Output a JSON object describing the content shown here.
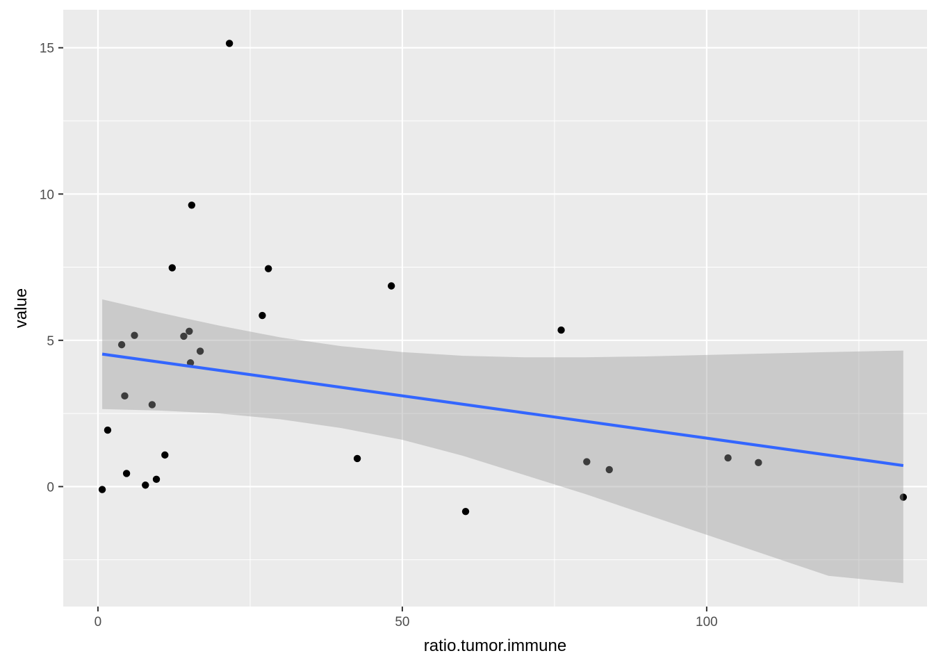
{
  "chart_data": {
    "type": "scatter",
    "title": "",
    "xlabel": "ratio.tumor.immune",
    "ylabel": "value",
    "xlim": [
      -5.7,
      136.2
    ],
    "ylim": [
      -4.1,
      16.3
    ],
    "x_ticks": [
      0,
      50,
      100
    ],
    "x_tick_labels": [
      "0",
      "50",
      "100"
    ],
    "y_ticks": [
      0,
      5,
      10,
      15
    ],
    "y_tick_labels": [
      "0",
      "5",
      "10",
      "15"
    ],
    "grid": true,
    "legend": "none",
    "colors": {
      "panel_background": "#ebebeb",
      "grid": "#ffffff",
      "points": "#000000",
      "fit_line": "#3366ff",
      "confidence_band": "#999999"
    },
    "points": [
      {
        "x": 0.7,
        "y": -0.1
      },
      {
        "x": 1.6,
        "y": 1.93
      },
      {
        "x": 3.9,
        "y": 4.85
      },
      {
        "x": 4.4,
        "y": 3.1
      },
      {
        "x": 4.7,
        "y": 0.45
      },
      {
        "x": 6.0,
        "y": 5.17
      },
      {
        "x": 7.8,
        "y": 0.05
      },
      {
        "x": 8.9,
        "y": 2.8
      },
      {
        "x": 9.6,
        "y": 0.25
      },
      {
        "x": 11.0,
        "y": 1.08
      },
      {
        "x": 12.2,
        "y": 7.48
      },
      {
        "x": 14.1,
        "y": 5.14
      },
      {
        "x": 15.0,
        "y": 5.31
      },
      {
        "x": 15.2,
        "y": 4.23
      },
      {
        "x": 15.4,
        "y": 9.62
      },
      {
        "x": 16.8,
        "y": 4.63
      },
      {
        "x": 21.6,
        "y": 15.15
      },
      {
        "x": 27.0,
        "y": 5.85
      },
      {
        "x": 28.0,
        "y": 7.45
      },
      {
        "x": 42.6,
        "y": 0.96
      },
      {
        "x": 48.2,
        "y": 6.86
      },
      {
        "x": 60.4,
        "y": -0.85
      },
      {
        "x": 76.1,
        "y": 5.35
      },
      {
        "x": 80.3,
        "y": 0.85
      },
      {
        "x": 84.0,
        "y": 0.58
      },
      {
        "x": 103.5,
        "y": 0.98
      },
      {
        "x": 108.5,
        "y": 0.82
      },
      {
        "x": 132.3,
        "y": -0.36
      }
    ],
    "fit_line": {
      "method": "lm",
      "x": [
        0.7,
        132.3
      ],
      "y": [
        4.53,
        0.72
      ]
    },
    "confidence_band": [
      {
        "x": 0.7,
        "lower": 2.65,
        "upper": 6.4
      },
      {
        "x": 10,
        "lower": 2.6,
        "upper": 5.95
      },
      {
        "x": 20,
        "lower": 2.5,
        "upper": 5.5
      },
      {
        "x": 30,
        "lower": 2.3,
        "upper": 5.1
      },
      {
        "x": 40,
        "lower": 2.0,
        "upper": 4.8
      },
      {
        "x": 50,
        "lower": 1.6,
        "upper": 4.6
      },
      {
        "x": 60,
        "lower": 1.05,
        "upper": 4.47
      },
      {
        "x": 70,
        "lower": 0.4,
        "upper": 4.42
      },
      {
        "x": 80,
        "lower": -0.25,
        "upper": 4.42
      },
      {
        "x": 90,
        "lower": -0.95,
        "upper": 4.45
      },
      {
        "x": 100,
        "lower": -1.65,
        "upper": 4.5
      },
      {
        "x": 110,
        "lower": -2.35,
        "upper": 4.55
      },
      {
        "x": 120,
        "lower": -3.05,
        "upper": 4.6
      },
      {
        "x": 132.3,
        "lower": -3.3,
        "upper": 4.65
      }
    ]
  }
}
